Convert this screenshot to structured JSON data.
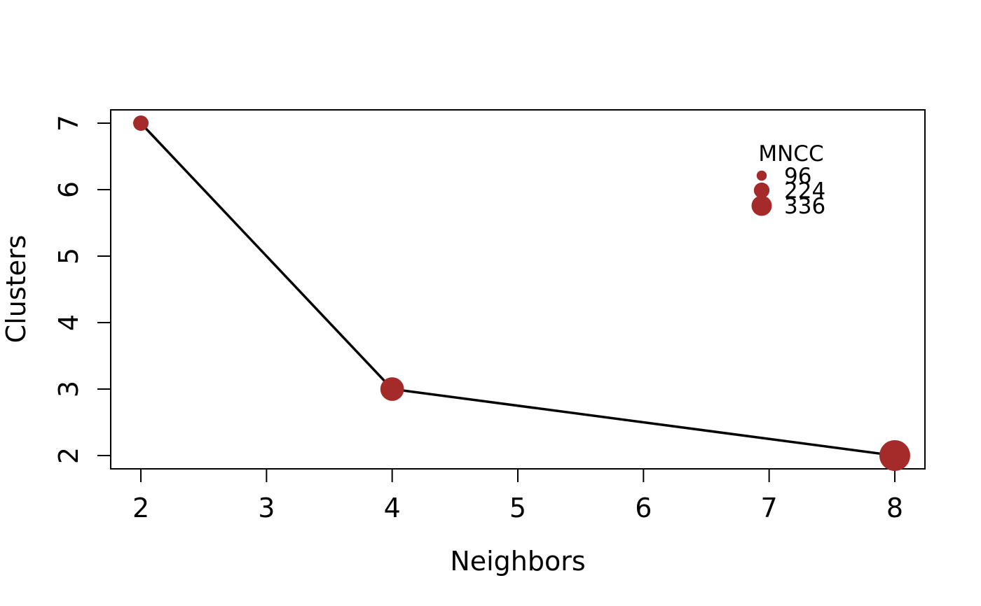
{
  "chart_data": {
    "type": "scatter",
    "title": "",
    "xlabel": "Neighbors",
    "ylabel": "Clusters",
    "xlim": [
      1.76,
      8.24
    ],
    "ylim": [
      1.8,
      7.2
    ],
    "xticks": [
      2,
      3,
      4,
      5,
      6,
      7,
      8
    ],
    "xtick_labels": [
      "2",
      "3",
      "4",
      "5",
      "6",
      "7",
      "8"
    ],
    "yticks": [
      2,
      3,
      4,
      5,
      6,
      7
    ],
    "ytick_labels": [
      "2",
      "3",
      "4",
      "5",
      "6",
      "7"
    ],
    "grid": false,
    "connected_line": true,
    "point_color": "#a52a2a",
    "line_color": "#000000",
    "points": [
      {
        "x": 2,
        "y": 7,
        "mncc": 96
      },
      {
        "x": 4,
        "y": 3,
        "mncc": 224
      },
      {
        "x": 8,
        "y": 2,
        "mncc": 336
      }
    ],
    "legend": {
      "title": "MNCC",
      "placement": "top-right",
      "entries": [
        {
          "label": "96",
          "value": 96
        },
        {
          "label": "224",
          "value": 224
        },
        {
          "label": "336",
          "value": 336
        }
      ]
    }
  }
}
